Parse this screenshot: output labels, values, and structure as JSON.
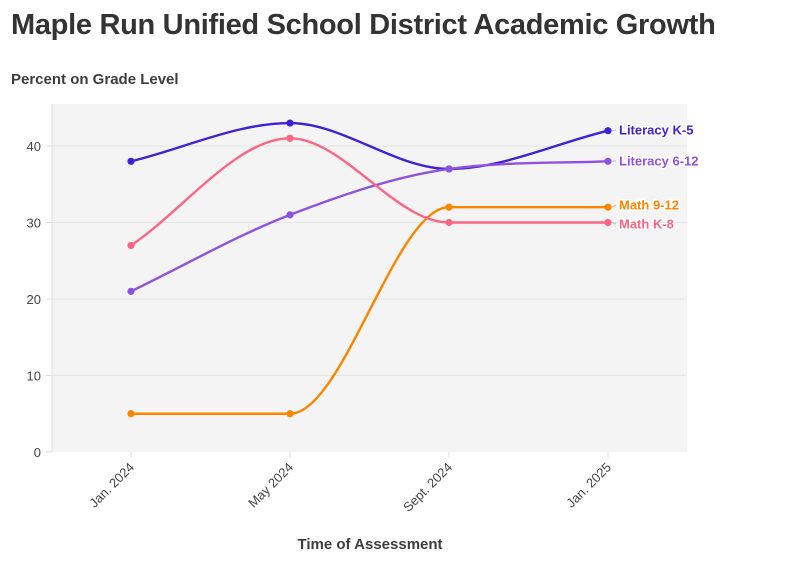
{
  "title": "Maple Run Unified School District Academic Growth",
  "y_axis_title": "Percent on Grade Level",
  "x_axis_title": "Time of Assessment",
  "colors": {
    "plot_bg": "#f4f4f4",
    "grid": "#e6e6e6",
    "literacy_k5": "#3f22d6",
    "literacy_6_12": "#8f52e0",
    "math_9_12": "#fb8500",
    "math_k8": "#fc6584"
  },
  "chart_data": {
    "type": "line",
    "title": "Maple Run Unified School District Academic Growth",
    "xlabel": "Time of Assessment",
    "ylabel": "Percent on Grade Level",
    "categories": [
      "Jan. 2024",
      "May 2024",
      "Sept. 2024",
      "Jan. 2025"
    ],
    "yticks": [
      0,
      10,
      20,
      30,
      40
    ],
    "ylim": [
      0,
      45
    ],
    "grid": true,
    "legend_position": "direct labels at line ends",
    "series": [
      {
        "name": "Literacy K-5",
        "values": [
          38,
          43,
          37,
          42
        ],
        "color": "#3f22d6"
      },
      {
        "name": "Literacy 6-12",
        "values": [
          21,
          31,
          37,
          38
        ],
        "color": "#8f52e0"
      },
      {
        "name": "Math 9-12",
        "values": [
          5,
          5,
          32,
          32
        ],
        "color": "#fb8500"
      },
      {
        "name": "Math K-8",
        "values": [
          27,
          41,
          30,
          30
        ],
        "color": "#fc6584"
      }
    ]
  }
}
